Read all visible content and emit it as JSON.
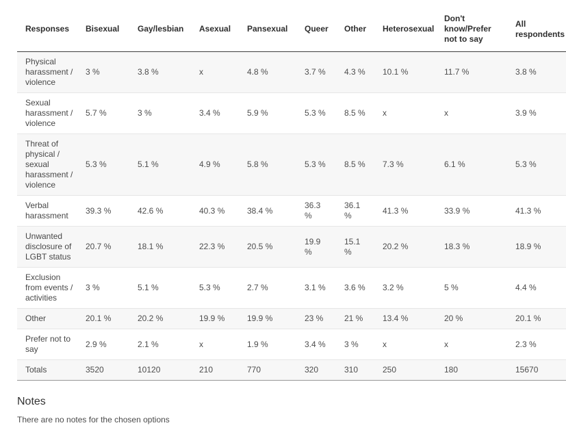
{
  "table": {
    "columns": [
      "Responses",
      "Bisexual",
      "Gay/lesbian",
      "Asexual",
      "Pansexual",
      "Queer",
      "Other",
      "Heterosexual",
      "Don't know/Prefer not to say",
      "All respondents"
    ],
    "rows": [
      {
        "label": "Physical harassment / violence",
        "values": [
          "3 %",
          "3.8 %",
          "x",
          "4.8 %",
          "3.7 %",
          "4.3 %",
          "10.1 %",
          "11.7 %",
          "3.8 %"
        ]
      },
      {
        "label": "Sexual harassment / violence",
        "values": [
          "5.7 %",
          "3 %",
          "3.4 %",
          "5.9 %",
          "5.3 %",
          "8.5 %",
          "x",
          "x",
          "3.9 %"
        ]
      },
      {
        "label": "Threat of physical / sexual harassment / violence",
        "values": [
          "5.3 %",
          "5.1 %",
          "4.9 %",
          "5.8 %",
          "5.3 %",
          "8.5 %",
          "7.3 %",
          "6.1 %",
          "5.3 %"
        ]
      },
      {
        "label": "Verbal harassment",
        "values": [
          "39.3 %",
          "42.6 %",
          "40.3 %",
          "38.4 %",
          "36.3 %",
          "36.1 %",
          "41.3 %",
          "33.9 %",
          "41.3 %"
        ]
      },
      {
        "label": "Unwanted disclosure of LGBT status",
        "values": [
          "20.7 %",
          "18.1 %",
          "22.3 %",
          "20.5 %",
          "19.9 %",
          "15.1 %",
          "20.2 %",
          "18.3 %",
          "18.9 %"
        ]
      },
      {
        "label": "Exclusion from events / activities",
        "values": [
          "3 %",
          "5.1 %",
          "5.3 %",
          "2.7 %",
          "3.1 %",
          "3.6 %",
          "3.2 %",
          "5 %",
          "4.4 %"
        ]
      },
      {
        "label": "Other",
        "values": [
          "20.1 %",
          "20.2 %",
          "19.9 %",
          "19.9 %",
          "23 %",
          "21 %",
          "13.4 %",
          "20 %",
          "20.1 %"
        ]
      },
      {
        "label": "Prefer not to say",
        "values": [
          "2.9 %",
          "2.1 %",
          "x",
          "1.9 %",
          "3.4 %",
          "3 %",
          "x",
          "x",
          "2.3 %"
        ]
      },
      {
        "label": "Totals",
        "values": [
          "3520",
          "10120",
          "210",
          "770",
          "320",
          "310",
          "250",
          "180",
          "15670"
        ]
      }
    ]
  },
  "notes": {
    "title": "Notes",
    "empty_message": "There are no notes for the chosen options"
  },
  "colors": {
    "stripe_row_bg": "#f7f7f7",
    "header_rule": "#3c3c3c",
    "row_separator": "#e6e6e6",
    "table_bottom_rule": "#969696",
    "header_text": "#2e2e2e",
    "body_text": "#4d4d4d"
  }
}
